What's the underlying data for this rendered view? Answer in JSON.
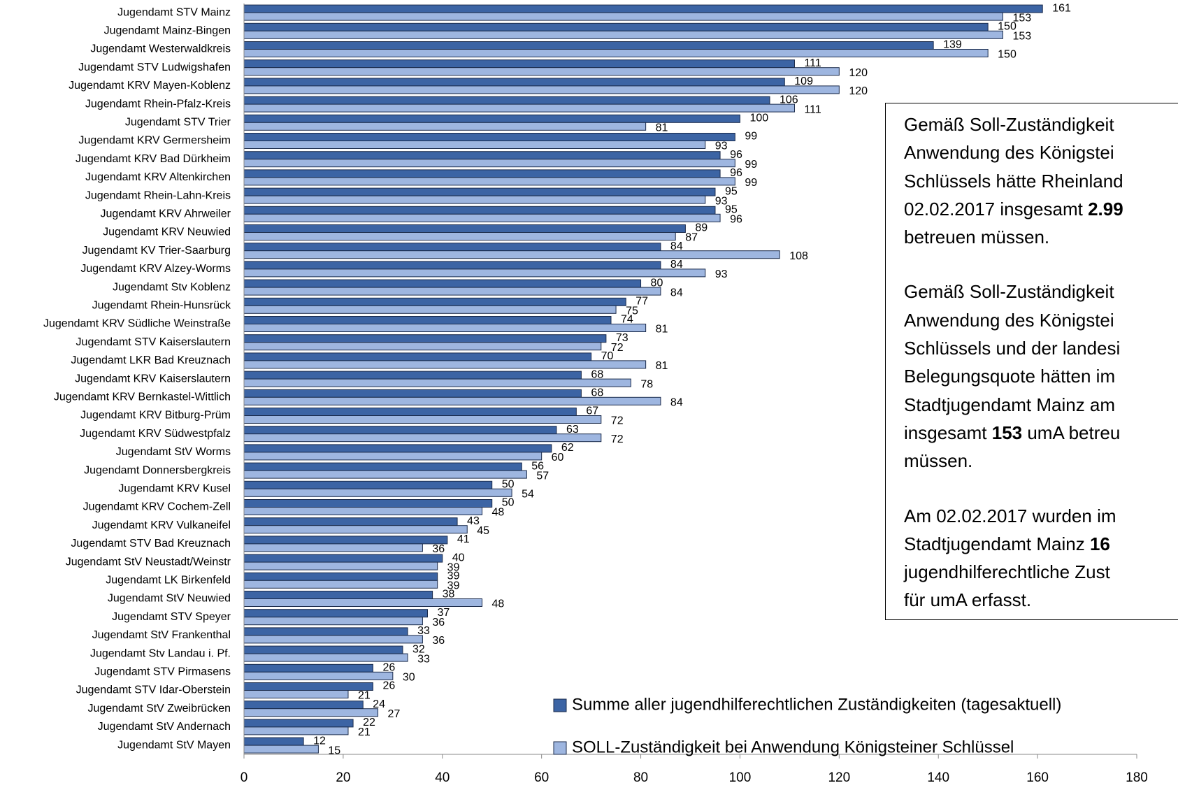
{
  "chart_data": {
    "type": "bar",
    "orientation": "horizontal",
    "categories": [
      "Jugendamt STV Mainz",
      "Jugendamt Mainz-Bingen",
      "Jugendamt Westerwaldkreis",
      "Jugendamt STV Ludwigshafen",
      "Jugendamt KRV Mayen-Koblenz",
      "Jugendamt Rhein-Pfalz-Kreis",
      "Jugendamt STV Trier",
      "Jugendamt KRV Germersheim",
      "Jugendamt KRV Bad Dürkheim",
      "Jugendamt KRV Altenkirchen",
      "Jugendamt Rhein-Lahn-Kreis",
      "Jugendamt KRV Ahrweiler",
      "Jugendamt KRV Neuwied",
      "Jugendamt KV Trier-Saarburg",
      "Jugendamt KRV Alzey-Worms",
      "Jugendamt Stv Koblenz",
      "Jugendamt Rhein-Hunsrück",
      "Jugendamt KRV Südliche Weinstraße",
      "Jugendamt STV Kaiserslautern",
      "Jugendamt LKR Bad Kreuznach",
      "Jugendamt KRV Kaiserslautern",
      "Jugendamt KRV Bernkastel-Wittlich",
      "Jugendamt KRV Bitburg-Prüm",
      "Jugendamt KRV Südwestpfalz",
      "Jugendamt StV Worms",
      "Jugendamt Donnersbergkreis",
      "Jugendamt KRV Kusel",
      "Jugendamt KRV Cochem-Zell",
      "Jugendamt KRV Vulkaneifel",
      "Jugendamt STV Bad Kreuznach",
      "Jugendamt StV Neustadt/Weinstr",
      "Jugendamt LK Birkenfeld",
      "Jugendamt StV Neuwied",
      "Jugendamt STV Speyer",
      "Jugendamt StV Frankenthal",
      "Jugendamt Stv Landau i. Pf.",
      "Jugendamt STV Pirmasens",
      "Jugendamt STV Idar-Oberstein",
      "Jugendamt StV Zweibrücken",
      "Jugendamt StV Andernach",
      "Jugendamt StV Mayen"
    ],
    "series": [
      {
        "name": "Summe aller jugendhilferechtlichen Zuständigkeiten (tagesaktuell)",
        "color": "#3c64a4",
        "values": [
          161,
          150,
          139,
          111,
          109,
          106,
          100,
          99,
          96,
          96,
          95,
          95,
          89,
          84,
          84,
          80,
          77,
          74,
          73,
          70,
          68,
          68,
          67,
          63,
          62,
          56,
          50,
          50,
          43,
          41,
          40,
          39,
          38,
          37,
          33,
          32,
          26,
          26,
          24,
          22,
          12
        ]
      },
      {
        "name": "SOLL-Zuständigkeit bei Anwendung Königsteiner Schlüssel",
        "color": "#9eb6e0",
        "values": [
          153,
          153,
          150,
          120,
          120,
          111,
          81,
          93,
          99,
          99,
          93,
          96,
          87,
          108,
          93,
          84,
          75,
          81,
          72,
          81,
          78,
          84,
          72,
          72,
          60,
          57,
          54,
          48,
          45,
          36,
          39,
          39,
          48,
          36,
          36,
          33,
          30,
          21,
          27,
          21,
          15
        ]
      }
    ],
    "xlim": [
      0,
      180
    ],
    "xticks": [
      0,
      20,
      40,
      60,
      80,
      100,
      120,
      140,
      160,
      180
    ]
  },
  "textbox": {
    "paragraphs": [
      [
        [
          {
            "text": "Gemäß Soll-Zuständigkeit"
          }
        ],
        [
          {
            "text": "Anwendung des Königstei"
          }
        ],
        [
          {
            "text": "Schlüssels hätte Rheinland"
          }
        ],
        [
          {
            "text": "02.02.2017 insgesamt "
          },
          {
            "text": "2.99",
            "bold": true
          }
        ],
        [
          {
            "text": "betreuen müssen."
          }
        ]
      ],
      [
        [
          {
            "text": "Gemäß Soll-Zuständigkeit"
          }
        ],
        [
          {
            "text": "Anwendung des Königstei"
          }
        ],
        [
          {
            "text": "Schlüssels und der landesi"
          }
        ],
        [
          {
            "text": "Belegungsquote hätten im"
          }
        ],
        [
          {
            "text": "Stadtjugendamt Mainz am"
          }
        ],
        [
          {
            "text": "insgesamt "
          },
          {
            "text": "153",
            "bold": true
          },
          {
            "text": " umA betreu"
          }
        ],
        [
          {
            "text": "müssen."
          }
        ]
      ],
      [
        [
          {
            "text": "Am 02.02.2017 wurden im"
          }
        ],
        [
          {
            "text": "Stadtjugendamt Mainz "
          },
          {
            "text": "16",
            "bold": true
          }
        ],
        [
          {
            "text": "jugendhilferechtliche Zust"
          }
        ],
        [
          {
            "text": "für umA erfasst."
          }
        ]
      ]
    ]
  }
}
